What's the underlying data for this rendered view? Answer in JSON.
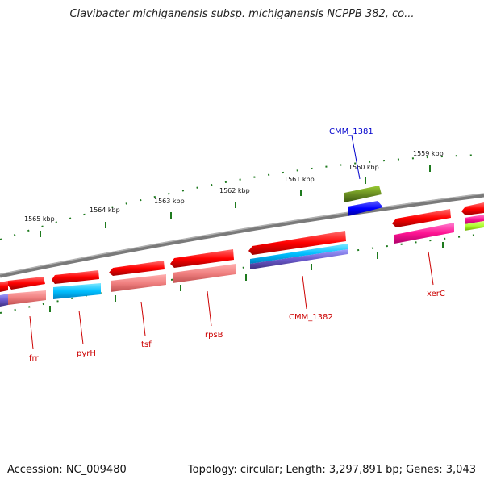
{
  "title": "Clavibacter michiganensis subsp. michiganensis NCPPB 382, co...",
  "footer": {
    "accession": "Accession: NC_009480",
    "stats": "Topology: circular; Length: 3,297,891 bp; Genes: 3,043"
  },
  "colors": {
    "backbone": "#808080",
    "ticks": "#1e7a1e",
    "forward_gene": "#ff0000",
    "gene_label": "#cc0000",
    "highlight_label": "#0000cc"
  },
  "kbp_labels": [
    "1565 kbp",
    "1564 kbp",
    "1563 kbp",
    "1562 kbp",
    "1561 kbp",
    "1560 kbp",
    "1559 kbp"
  ],
  "gene_labels": [
    {
      "name": "frr",
      "color": "#cc0000"
    },
    {
      "name": "pyrH",
      "color": "#cc0000"
    },
    {
      "name": "tsf",
      "color": "#cc0000"
    },
    {
      "name": "rpsB",
      "color": "#cc0000"
    },
    {
      "name": "CMM_1382",
      "color": "#cc0000"
    },
    {
      "name": "xerC",
      "color": "#cc0000"
    },
    {
      "name": "CMM_1381",
      "color": "#0000cc"
    }
  ]
}
